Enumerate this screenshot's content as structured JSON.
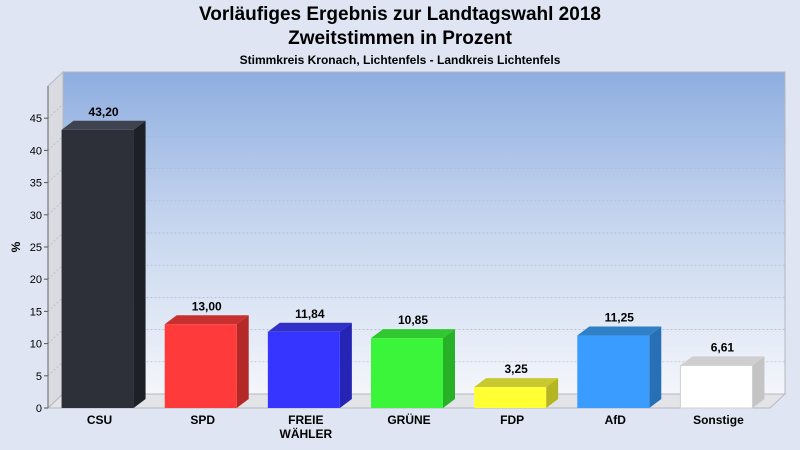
{
  "chart_data": {
    "type": "bar",
    "title": "Vorläufiges Ergebnis zur Landtagswahl 2018",
    "subtitle_line": "Zweitstimmen in Prozent",
    "subtitle": "Stimmkreis Kronach, Lichtenfels - Landkreis Lichtenfels",
    "ylabel": "%",
    "xlabel": "",
    "ylim": [
      0,
      50
    ],
    "yticks": [
      0,
      5,
      10,
      15,
      20,
      25,
      30,
      35,
      40,
      45
    ],
    "grid": true,
    "categories": [
      [
        "CSU"
      ],
      [
        "SPD"
      ],
      [
        "FREIE",
        "WÄHLER"
      ],
      [
        "GRÜNE"
      ],
      [
        "FDP"
      ],
      [
        "AfD"
      ],
      [
        "Sonstige"
      ]
    ],
    "values": [
      43.2,
      13.0,
      11.84,
      10.85,
      3.25,
      11.25,
      6.61
    ],
    "value_labels": [
      "43,20",
      "13,00",
      "11,84",
      "10,85",
      "3,25",
      "11,25",
      "6,61"
    ],
    "colors": [
      "#2d3039",
      "#ff3a3a",
      "#3535ff",
      "#3af53a",
      "#ffff33",
      "#3a9cff",
      "#ffffff"
    ],
    "side_colors": [
      "#1e2027",
      "#b52828",
      "#2424b5",
      "#28b028",
      "#b5b524",
      "#2870b5",
      "#c4c4c4"
    ],
    "top_colors": [
      "#3f434f",
      "#c83030",
      "#3030c8",
      "#30c830",
      "#c8c830",
      "#3080c8",
      "#cfcfcf"
    ]
  }
}
